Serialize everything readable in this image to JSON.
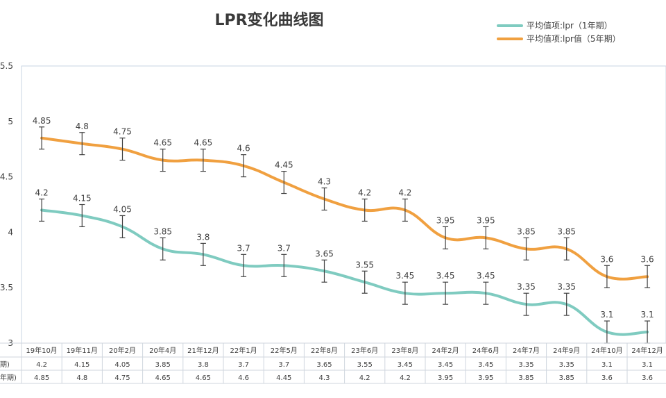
{
  "chart_data": {
    "type": "line",
    "title": "LPR变化曲线图",
    "categories": [
      "19年10月",
      "19年11月",
      "20年2月",
      "20年4月",
      "21年12月",
      "22年1月",
      "22年5月",
      "22年8月",
      "23年6月",
      "23年8月",
      "24年2月",
      "24年6月",
      "24年7月",
      "24年9月",
      "24年10月",
      "24年12月"
    ],
    "series": [
      {
        "name": "平均值项:lpr（1年期）",
        "color": "#7fcbc0",
        "values": [
          4.2,
          4.15,
          4.05,
          3.85,
          3.8,
          3.7,
          3.7,
          3.65,
          3.55,
          3.45,
          3.45,
          3.45,
          3.35,
          3.35,
          3.1,
          3.1
        ],
        "labels": [
          "4.2",
          "4.15",
          "4.05",
          "3.85",
          "3.8",
          "3.7",
          "3.7",
          "3.65",
          "3.55",
          "3.45",
          "3.45",
          "3.45",
          "3.35",
          "3.35",
          "3.1",
          "3.1"
        ]
      },
      {
        "name": "平均值项:lpr值（5年期）",
        "color": "#f0a040",
        "values": [
          4.85,
          4.8,
          4.75,
          4.65,
          4.65,
          4.6,
          4.45,
          4.3,
          4.2,
          4.2,
          3.95,
          3.95,
          3.85,
          3.85,
          3.6,
          3.6
        ],
        "labels": [
          "4.85",
          "4.8",
          "4.75",
          "4.65",
          "4.65",
          "4.6",
          "4.45",
          "4.3",
          "4.2",
          "4.2",
          "3.95",
          "3.95",
          "3.85",
          "3.85",
          "3.6",
          "3.6"
        ]
      }
    ],
    "error_bar": 0.1,
    "ylim": [
      3,
      5.5
    ],
    "yticks": [
      "3",
      "3.5",
      "4",
      "4.5",
      "5",
      "5.5"
    ],
    "ytick_values": [
      3,
      3.5,
      4,
      4.5,
      5,
      5.5
    ],
    "legend_position": "top-right",
    "table": {
      "row_headers": [
        "期)",
        "年期)"
      ],
      "rows": [
        [
          "4.2",
          "4.15",
          "4.05",
          "3.85",
          "3.8",
          "3.7",
          "3.7",
          "3.65",
          "3.55",
          "3.45",
          "3.45",
          "3.45",
          "3.35",
          "3.35",
          "3.1",
          "3.1"
        ],
        [
          "4.85",
          "4.8",
          "4.75",
          "4.65",
          "4.65",
          "4.6",
          "4.45",
          "4.3",
          "4.2",
          "4.2",
          "3.95",
          "3.95",
          "3.85",
          "3.85",
          "3.6",
          "3.6"
        ]
      ]
    }
  }
}
